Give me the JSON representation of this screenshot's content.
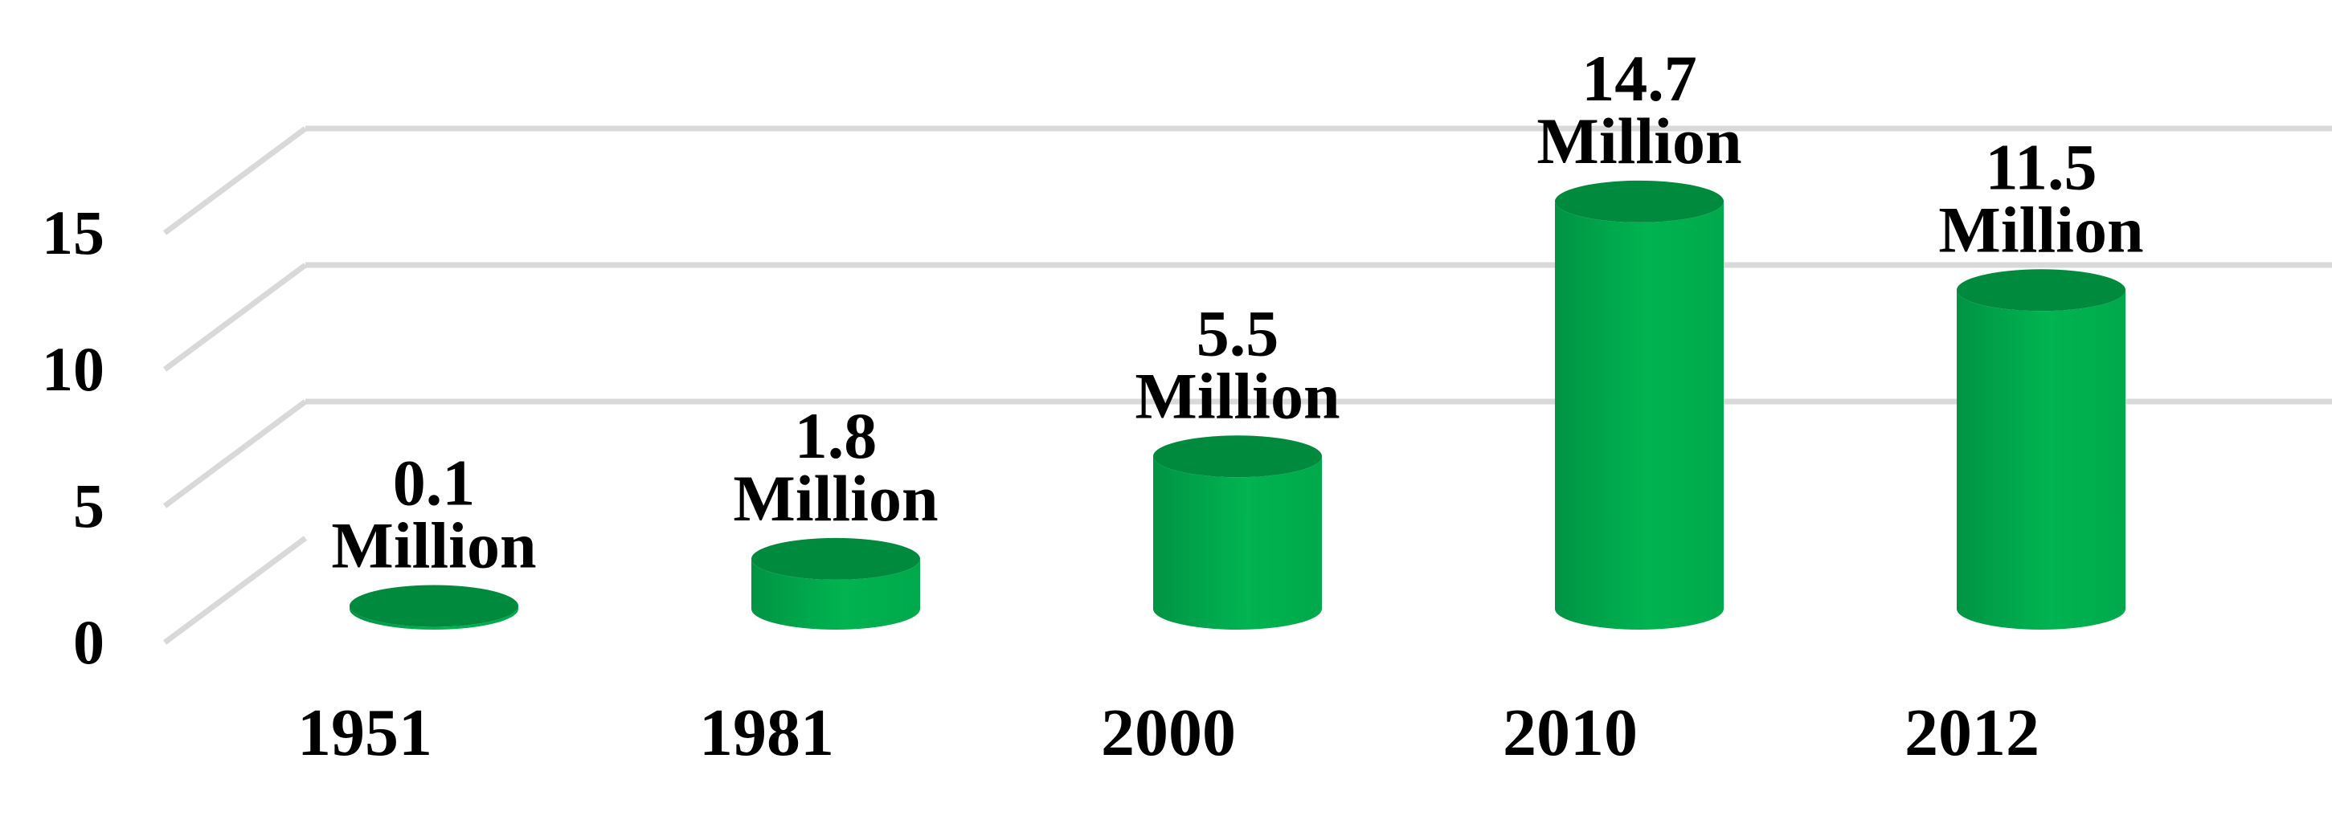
{
  "chart_data": {
    "type": "bar",
    "style": "3d-cylinder",
    "title": "",
    "xlabel": "",
    "ylabel": "",
    "categories": [
      "1951",
      "1981",
      "2000",
      "2010",
      "2012"
    ],
    "values": [
      0.1,
      1.8,
      5.5,
      14.7,
      11.5
    ],
    "data_labels": [
      {
        "value": "0.1",
        "unit": "Million"
      },
      {
        "value": "1.8",
        "unit": "Million"
      },
      {
        "value": "5.5",
        "unit": "Million"
      },
      {
        "value": "14.7",
        "unit": "Million"
      },
      {
        "value": "11.5",
        "unit": "Million"
      }
    ],
    "highlight_index": 3,
    "ylim": [
      0,
      15
    ],
    "yticks": [
      "0",
      "5",
      "10",
      "15"
    ],
    "grid": true,
    "legend": "none",
    "colors": {
      "bar": "#00b04f",
      "bar_dark": "#00873c",
      "bar_top": "#008a3e",
      "grid": "#d9d9d9",
      "label": "#000000",
      "highlight_label": "#ff0000"
    }
  }
}
